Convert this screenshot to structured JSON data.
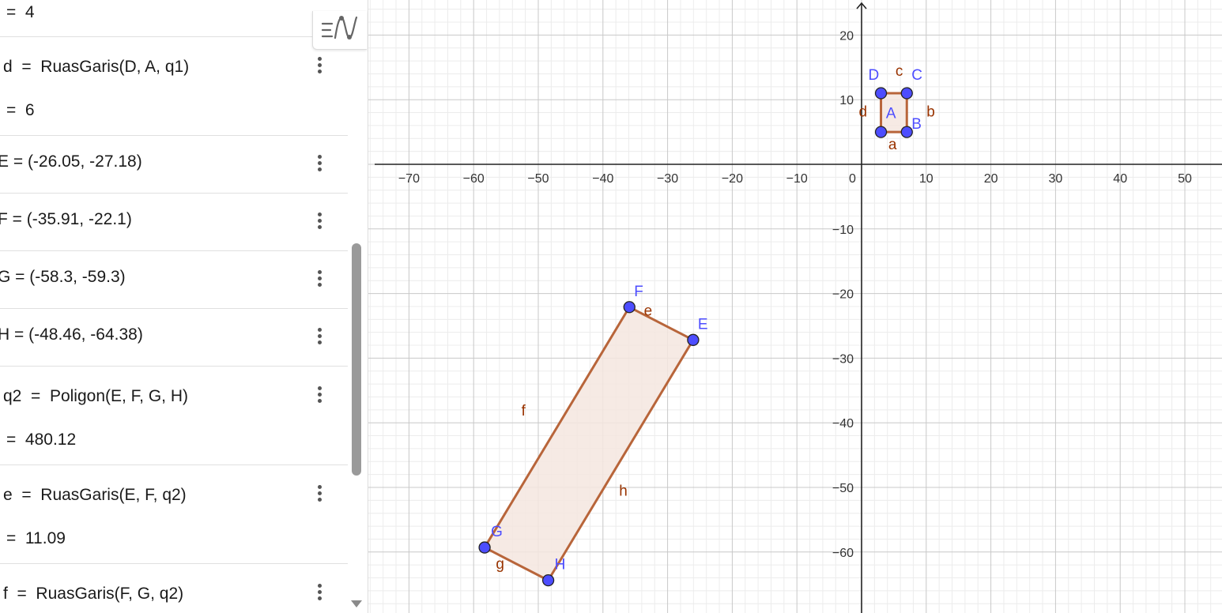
{
  "algebra_view": {
    "rows": [
      {
        "def": "",
        "value": "=  4"
      },
      {
        "def": "d  =  RuasGaris(D, A, q1)",
        "value": "=  6"
      },
      {
        "def": "E = (-26.05, -27.18)",
        "value": ""
      },
      {
        "def": "F = (-35.91, -22.1)",
        "value": ""
      },
      {
        "def": "G = (-58.3, -59.3)",
        "value": ""
      },
      {
        "def": "H = (-48.46, -64.38)",
        "value": ""
      },
      {
        "def": "q2  =  Poligon(E, F, G, H)",
        "value": "=  480.12"
      },
      {
        "def": "e  =  RuasGaris(E, F, q2)",
        "value": "=  11.09"
      },
      {
        "def": "f  =  RuasGaris(F, G, q2)",
        "value": ""
      }
    ],
    "style_toggle_icon": "algebra-style-icon",
    "menu_icon": "kebab-menu-icon"
  },
  "graphics_view": {
    "x_ticks": [
      "−70",
      "−60",
      "−50",
      "−40",
      "−30",
      "−20",
      "−10",
      "0",
      "10",
      "20",
      "30",
      "40",
      "50"
    ],
    "y_ticks": [
      "20",
      "10",
      "−10",
      "−20",
      "−30",
      "−40",
      "−50",
      "−60"
    ],
    "points": [
      {
        "label": "A",
        "x": 3,
        "y": 5
      },
      {
        "label": "B",
        "x": 7,
        "y": 5
      },
      {
        "label": "C",
        "x": 7,
        "y": 11
      },
      {
        "label": "D",
        "x": 3,
        "y": 11
      },
      {
        "label": "E",
        "x": -26.05,
        "y": -27.18
      },
      {
        "label": "F",
        "x": -35.91,
        "y": -22.1
      },
      {
        "label": "G",
        "x": -58.3,
        "y": -59.3
      },
      {
        "label": "H",
        "x": -48.46,
        "y": -64.38
      }
    ],
    "polygon_q1_label": "A",
    "segment_labels_q1": [
      "a",
      "b",
      "c",
      "d"
    ],
    "segment_labels_q2": [
      "e",
      "f",
      "g",
      "h"
    ],
    "colors": {
      "point_fill": "#4d4dff",
      "point_label": "#4d4dff",
      "segment": "#b8653a",
      "segment_label": "#993300",
      "polygon_fill": "#f5e6df",
      "axis": "#222222",
      "grid_major": "#c8c8c8",
      "grid_minor": "#ececec"
    }
  }
}
